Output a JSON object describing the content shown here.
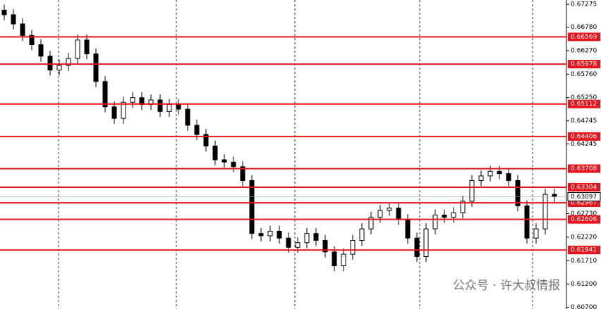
{
  "chart_data": {
    "type": "candlestick",
    "open": [
      0.6715,
      0.6705,
      0.6685,
      0.666,
      0.664,
      0.6615,
      0.6585,
      0.6595,
      0.661,
      0.665,
      0.662,
      0.656,
      0.6505,
      0.648,
      0.6515,
      0.6525,
      0.651,
      0.652,
      0.6495,
      0.651,
      0.65,
      0.6465,
      0.6445,
      0.642,
      0.639,
      0.6385,
      0.6375,
      0.6345,
      0.623,
      0.6225,
      0.6235,
      0.622,
      0.62,
      0.621,
      0.623,
      0.6215,
      0.619,
      0.616,
      0.6185,
      0.6215,
      0.624,
      0.6265,
      0.628,
      0.6285,
      0.626,
      0.622,
      0.618,
      0.624,
      0.627,
      0.6265,
      0.6275,
      0.63,
      0.6345,
      0.6355,
      0.6365,
      0.636,
      0.6345,
      0.629,
      0.622,
      0.624,
      0.6315
    ],
    "high": [
      0.6727,
      0.6717,
      0.6697,
      0.6672,
      0.6652,
      0.6627,
      0.6607,
      0.6622,
      0.6662,
      0.6662,
      0.6632,
      0.6572,
      0.6517,
      0.6527,
      0.6537,
      0.6537,
      0.6532,
      0.6532,
      0.6522,
      0.6522,
      0.6512,
      0.6477,
      0.6457,
      0.6432,
      0.6402,
      0.6397,
      0.6387,
      0.6357,
      0.6242,
      0.6247,
      0.6247,
      0.6232,
      0.6222,
      0.6242,
      0.6242,
      0.6227,
      0.6202,
      0.6197,
      0.6227,
      0.6252,
      0.6277,
      0.6292,
      0.6297,
      0.6297,
      0.6272,
      0.6232,
      0.6252,
      0.6282,
      0.6282,
      0.6287,
      0.6312,
      0.6357,
      0.6367,
      0.6377,
      0.6377,
      0.6372,
      0.6357,
      0.6302,
      0.6252,
      0.6327,
      0.6327
    ],
    "low": [
      0.6693,
      0.6673,
      0.6648,
      0.6628,
      0.6603,
      0.6573,
      0.6573,
      0.6583,
      0.6598,
      0.6608,
      0.6548,
      0.6493,
      0.6468,
      0.6468,
      0.6503,
      0.6498,
      0.6498,
      0.6483,
      0.6483,
      0.6488,
      0.6453,
      0.6433,
      0.6408,
      0.6378,
      0.6373,
      0.6363,
      0.6333,
      0.6218,
      0.6213,
      0.6213,
      0.6208,
      0.6188,
      0.6188,
      0.6198,
      0.6203,
      0.6178,
      0.6148,
      0.6148,
      0.6173,
      0.6203,
      0.6228,
      0.6253,
      0.6268,
      0.6248,
      0.6208,
      0.6168,
      0.6168,
      0.6228,
      0.6253,
      0.6253,
      0.6263,
      0.6288,
      0.6333,
      0.6343,
      0.6348,
      0.6333,
      0.6278,
      0.6208,
      0.6208,
      0.6228,
      0.6298
    ],
    "close": [
      0.6705,
      0.6685,
      0.666,
      0.664,
      0.6615,
      0.6585,
      0.6595,
      0.661,
      0.665,
      0.662,
      0.656,
      0.6505,
      0.648,
      0.6515,
      0.6525,
      0.651,
      0.652,
      0.6495,
      0.651,
      0.65,
      0.6465,
      0.6445,
      0.642,
      0.639,
      0.6385,
      0.6375,
      0.6345,
      0.623,
      0.6225,
      0.6235,
      0.622,
      0.62,
      0.621,
      0.623,
      0.6215,
      0.619,
      0.616,
      0.6185,
      0.6215,
      0.624,
      0.6265,
      0.628,
      0.6285,
      0.626,
      0.622,
      0.618,
      0.624,
      0.627,
      0.6265,
      0.6275,
      0.63,
      0.6345,
      0.6355,
      0.6365,
      0.636,
      0.6345,
      0.629,
      0.622,
      0.624,
      0.6315,
      0.631
    ],
    "ylim": [
      0.6066,
      0.6737
    ],
    "yticks": [
      0.67275,
      {
        "value": 0.6678,
        "label": "0.66780"
      },
      {
        "value": 0.6627,
        "label": "0.66270"
      },
      {
        "value": 0.6576,
        "label": "0.65760"
      },
      {
        "value": 0.6525,
        "label": "0.65250"
      },
      0.64745,
      0.64245,
      {
        "value": 0.6273,
        "label": "0.62730"
      },
      {
        "value": 0.6222,
        "label": "0.62220"
      },
      {
        "value": 0.6171,
        "label": "0.61710"
      },
      {
        "value": 0.612,
        "label": "0.61200"
      },
      {
        "value": 0.607,
        "label": "0.60700"
      }
    ],
    "levels": [
      0.66569,
      0.65978,
      0.65112,
      0.64406,
      0.63708,
      0.63304,
      0.62967,
      0.62606,
      0.61941
    ],
    "level_color": "#e8141c",
    "current_price": 0.63097,
    "watermark": "公众号 · 许大叔情报"
  }
}
